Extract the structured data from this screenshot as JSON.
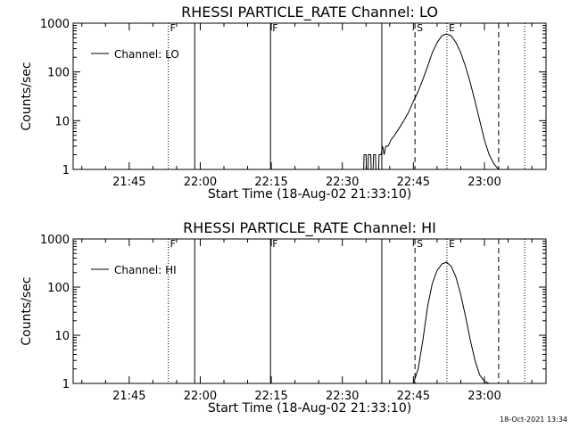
{
  "timestamp": "18-Oct-2021 13:34",
  "chart_data": [
    {
      "type": "line",
      "title": "RHESSI PARTICLE_RATE Channel: LO",
      "xlabel": "Start Time (18-Aug-02 21:33:10)",
      "ylabel": "Counts/sec",
      "yscale": "log",
      "xlim": [
        "21:33:10",
        "23:13:00"
      ],
      "ylim": [
        1,
        1000
      ],
      "xticks": [
        "21:45",
        "22:00",
        "22:15",
        "22:30",
        "22:45",
        "23:00"
      ],
      "yticks": [
        "1",
        "10",
        "100",
        "1000"
      ],
      "legend": {
        "label": "Channel: LO",
        "placement": "top-left"
      },
      "markers": [
        {
          "time": "21:53:15",
          "style": "dotted",
          "label": "F"
        },
        {
          "time": "21:58:50",
          "style": "solid",
          "label": ""
        },
        {
          "time": "22:14:50",
          "style": "solid",
          "label": "F"
        },
        {
          "time": "22:38:20",
          "style": "solid",
          "label": ""
        },
        {
          "time": "22:45:20",
          "style": "dashed",
          "label": "S"
        },
        {
          "time": "22:52:05",
          "style": "dotted",
          "label": "E"
        },
        {
          "time": "23:03:00",
          "style": "dashed",
          "label": ""
        },
        {
          "time": "23:08:30",
          "style": "dotted",
          "label": ""
        }
      ],
      "series": [
        {
          "x": [
            "22:34:30",
            "22:34:35",
            "22:35:00",
            "22:35:05",
            "22:35:25",
            "22:35:30",
            "22:36:00",
            "22:36:05",
            "22:36:30",
            "22:36:35",
            "22:37:00",
            "22:37:05",
            "22:37:40",
            "22:37:45",
            "22:38:10",
            "22:38:30",
            "22:38:50",
            "22:39:10",
            "22:39:40",
            "22:40:15",
            "22:41:00",
            "22:42:00",
            "22:43:00",
            "22:44:00",
            "22:45:00",
            "22:46:00",
            "22:47:00",
            "22:48:00",
            "22:49:00",
            "22:50:00",
            "22:51:00",
            "22:52:00",
            "22:53:00",
            "22:54:00",
            "22:55:00",
            "22:56:00",
            "22:57:00",
            "22:58:00",
            "22:59:00",
            "23:00:00",
            "23:01:00",
            "23:02:00",
            "23:03:00"
          ],
          "y": [
            1,
            2,
            2,
            1,
            1,
            2,
            2,
            1,
            1,
            2,
            2,
            1,
            1,
            2,
            2,
            3,
            2,
            3,
            3,
            4,
            5,
            7,
            10,
            15,
            25,
            40,
            70,
            130,
            250,
            400,
            550,
            600,
            550,
            400,
            250,
            130,
            60,
            25,
            10,
            4,
            2,
            1.3,
            1
          ]
        }
      ]
    },
    {
      "type": "line",
      "title": "RHESSI PARTICLE_RATE Channel: HI",
      "xlabel": "Start Time (18-Aug-02 21:33:10)",
      "ylabel": "Counts/sec",
      "yscale": "log",
      "xlim": [
        "21:33:10",
        "23:13:00"
      ],
      "ylim": [
        1,
        1000
      ],
      "xticks": [
        "21:45",
        "22:00",
        "22:15",
        "22:30",
        "22:45",
        "23:00"
      ],
      "yticks": [
        "1",
        "10",
        "100",
        "1000"
      ],
      "legend": {
        "label": "Channel: HI",
        "placement": "top-left"
      },
      "markers": [
        {
          "time": "21:53:15",
          "style": "dotted",
          "label": "F"
        },
        {
          "time": "21:58:50",
          "style": "solid",
          "label": ""
        },
        {
          "time": "22:14:50",
          "style": "solid",
          "label": "F"
        },
        {
          "time": "22:38:20",
          "style": "solid",
          "label": ""
        },
        {
          "time": "22:45:20",
          "style": "dashed",
          "label": "S"
        },
        {
          "time": "22:52:05",
          "style": "dotted",
          "label": "E"
        },
        {
          "time": "23:03:00",
          "style": "dashed",
          "label": ""
        },
        {
          "time": "23:08:30",
          "style": "dotted",
          "label": ""
        }
      ],
      "series": [
        {
          "x": [
            "22:45:00",
            "22:46:00",
            "22:47:00",
            "22:48:00",
            "22:49:00",
            "22:50:00",
            "22:51:00",
            "22:52:00",
            "22:53:00",
            "22:54:00",
            "22:55:00",
            "22:56:00",
            "22:57:00",
            "22:58:00",
            "22:59:00",
            "23:00:00",
            "23:01:00",
            "23:02:00",
            "23:02:30"
          ],
          "y": [
            1,
            2,
            8,
            40,
            120,
            220,
            300,
            330,
            270,
            160,
            70,
            25,
            8,
            3,
            1.5,
            1.1,
            1,
            1,
            1
          ]
        }
      ]
    }
  ]
}
